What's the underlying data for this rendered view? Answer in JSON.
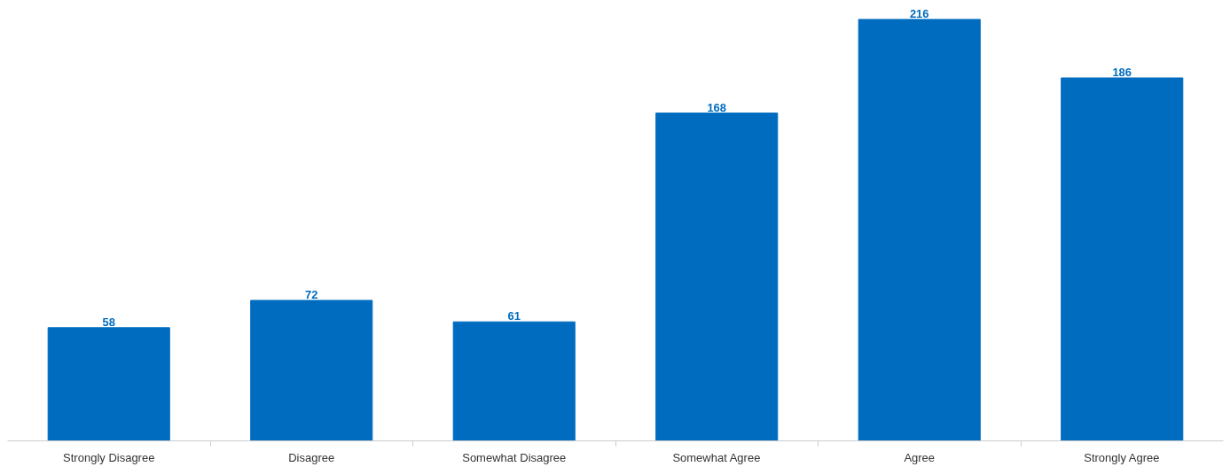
{
  "chart_data": {
    "type": "bar",
    "categories": [
      "Strongly Disagree",
      "Disagree",
      "Somewhat Disagree",
      "Somewhat Agree",
      "Agree",
      "Strongly Agree"
    ],
    "values": [
      58,
      72,
      61,
      168,
      216,
      186
    ],
    "color": "#006cbf",
    "data_labels": true,
    "grid": false
  }
}
